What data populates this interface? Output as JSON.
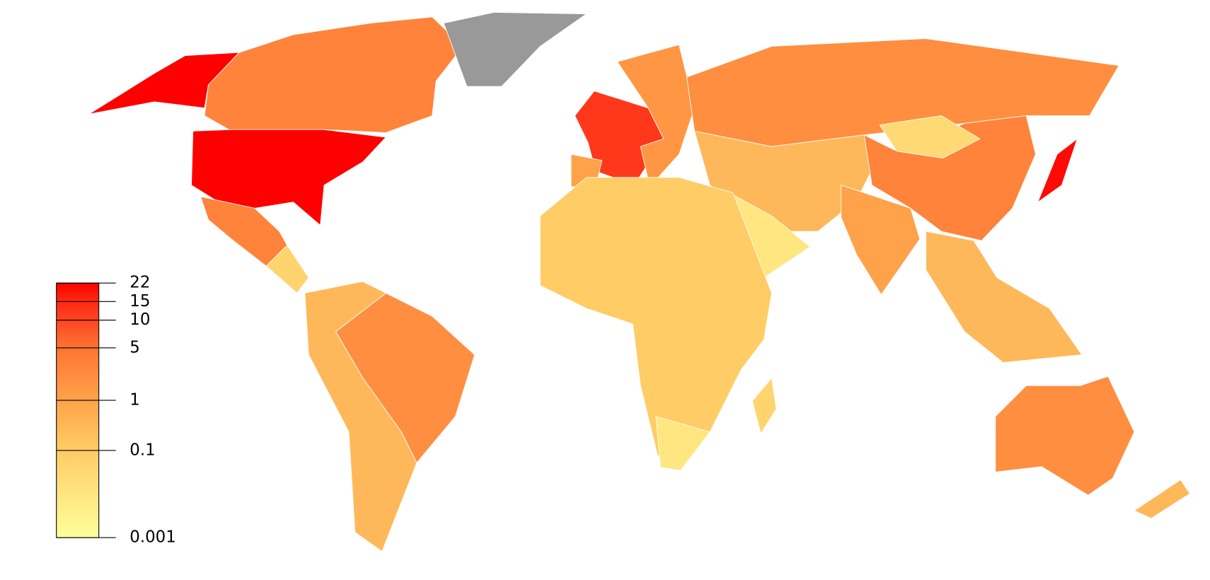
{
  "map": {
    "legend": {
      "ticks": [
        22,
        15,
        10,
        5,
        1,
        0.1,
        0.001
      ],
      "colors": [
        "#ff0000",
        "#ff2a12",
        "#ff4422",
        "#ff7433",
        "#ffa24a",
        "#ffcc66",
        "#ffff99"
      ]
    },
    "no_data_color": "#999999",
    "regions": {
      "values": [
        22,
        3,
        null,
        22,
        3,
        0.05,
        2,
        0.3,
        12,
        1.5,
        1,
        2,
        0.3,
        0.01,
        3,
        0.03,
        1,
        20,
        0.3,
        0.1,
        0.01,
        2,
        0.3,
        0.05
      ]
    }
  }
}
